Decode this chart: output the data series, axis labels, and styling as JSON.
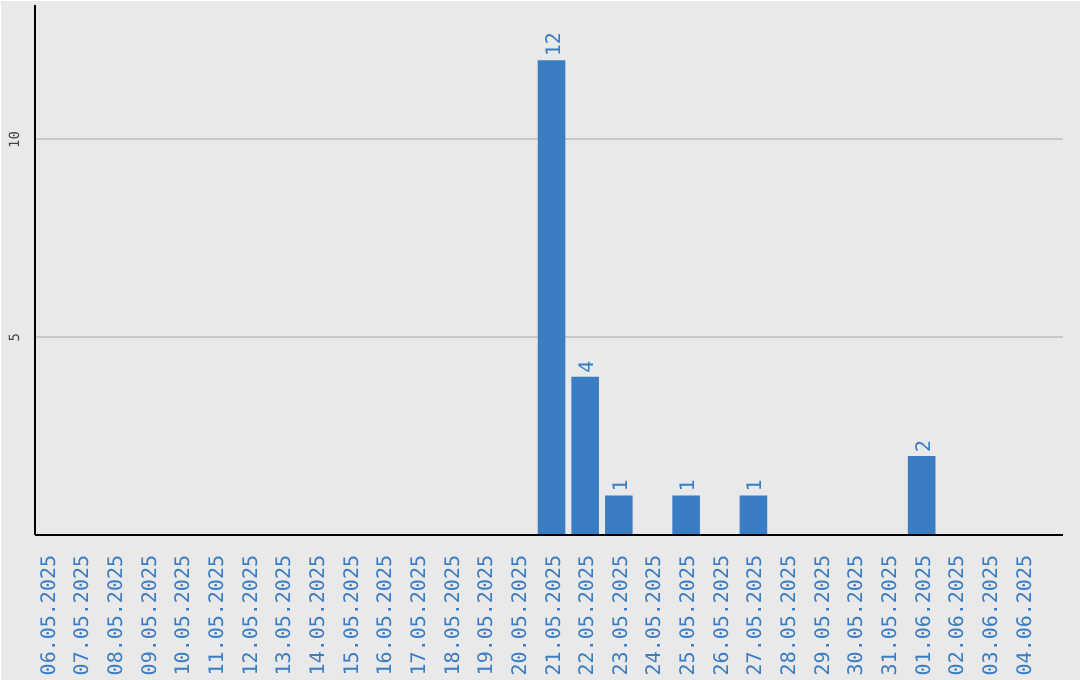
{
  "chart_data": {
    "type": "bar",
    "categories": [
      "06.05.2025",
      "07.05.2025",
      "08.05.2025",
      "09.05.2025",
      "10.05.2025",
      "11.05.2025",
      "12.05.2025",
      "13.05.2025",
      "14.05.2025",
      "15.05.2025",
      "16.05.2025",
      "17.05.2025",
      "18.05.2025",
      "19.05.2025",
      "20.05.2025",
      "21.05.2025",
      "22.05.2025",
      "23.05.2025",
      "24.05.2025",
      "25.05.2025",
      "26.05.2025",
      "27.05.2025",
      "28.05.2025",
      "29.05.2025",
      "30.05.2025",
      "31.05.2025",
      "01.06.2025",
      "02.06.2025",
      "03.06.2025",
      "04.06.2025"
    ],
    "values": [
      0,
      0,
      0,
      0,
      0,
      0,
      0,
      0,
      0,
      0,
      0,
      0,
      0,
      0,
      0,
      12,
      4,
      1,
      0,
      1,
      0,
      1,
      0,
      0,
      0,
      0,
      2,
      0,
      0,
      0
    ],
    "value_labels": [
      null,
      null,
      null,
      null,
      null,
      null,
      null,
      null,
      null,
      null,
      null,
      null,
      null,
      null,
      null,
      "12",
      "4",
      "1",
      null,
      "1",
      null,
      "1",
      null,
      null,
      null,
      null,
      "2",
      null,
      null,
      null
    ],
    "color": "#3b7dc2",
    "ylim": [
      0,
      13.4
    ],
    "yticks": [
      5,
      10
    ],
    "grid": "y"
  }
}
